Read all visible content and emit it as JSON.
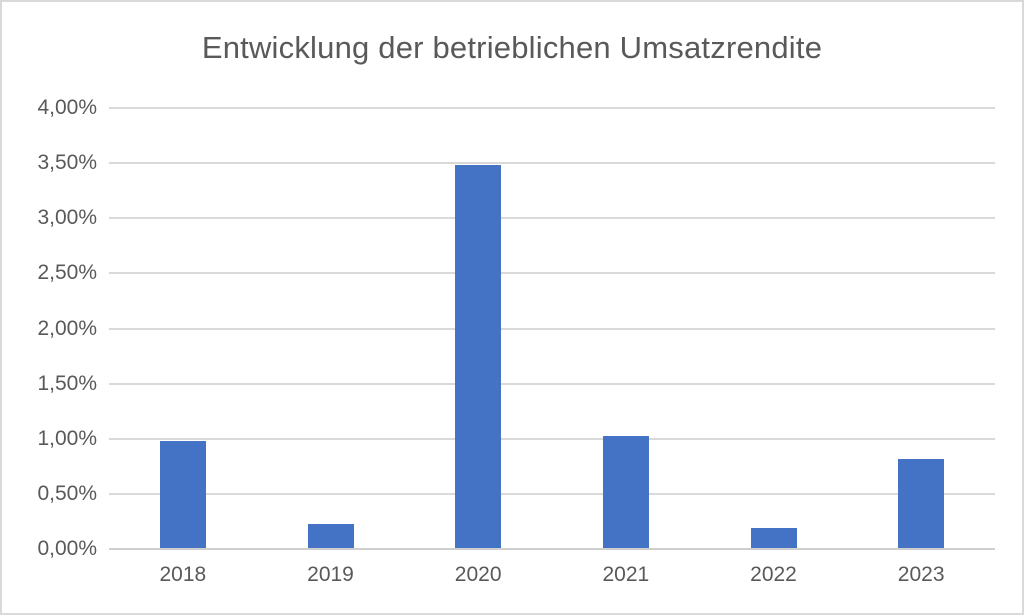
{
  "window": {
    "background_color": "#ffffff",
    "border_color": "#d9d9d9"
  },
  "chart_data": {
    "type": "bar",
    "title": "Entwicklung der betrieblichen Umsatzrendite",
    "categories": [
      "2018",
      "2019",
      "2020",
      "2021",
      "2022",
      "2023"
    ],
    "values": [
      0.97,
      0.22,
      3.47,
      1.02,
      0.18,
      0.81
    ],
    "value_unit": "%",
    "value_display_format": "german-decimal-comma",
    "xlabel": "",
    "ylabel": "",
    "ylim": [
      0,
      4
    ],
    "ytick_step": 0.5,
    "ytick_labels_top_to_bottom": [
      "4,00%",
      "3,50%",
      "3,00%",
      "2,50%",
      "2,00%",
      "1,50%",
      "1,00%",
      "0,50%",
      "0,00%"
    ],
    "grid": true,
    "legend": false,
    "colors": {
      "bar": "#4472c4",
      "gridline": "#d9d9d9",
      "axis_line": "#cfcfcf",
      "text": "#595959",
      "title_text": "#595959"
    }
  }
}
